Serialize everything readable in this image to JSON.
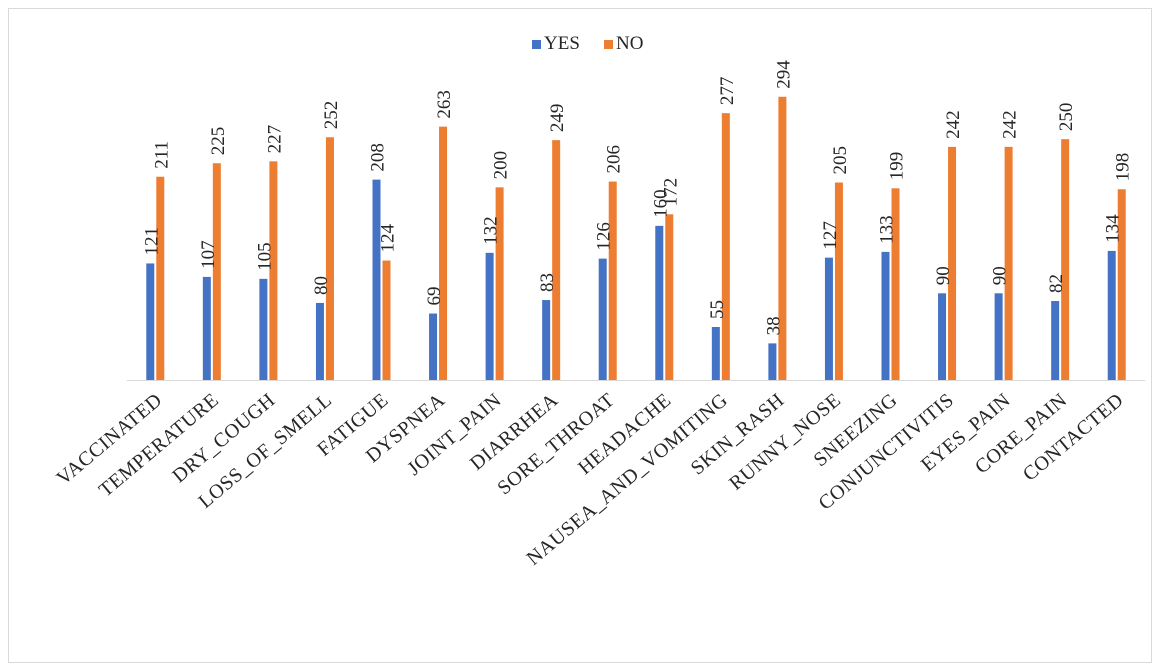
{
  "chart_data": {
    "type": "bar",
    "categories": [
      "VACCINATED",
      "TEMPERATURE",
      "DRY_COUGH",
      "LOSS_OF_SMELL",
      "FATIGUE",
      "DYSPNEA",
      "JOINT_PAIN",
      "DIARRHEA",
      "SORE_THROAT",
      "HEADACHE",
      "NAUSEA_AND_VOMITING",
      "SKIN_RASH",
      "RUNNY_NOSE",
      "SNEEZING",
      "CONJUNCTIVITIS",
      "EYES_PAIN",
      "CORE_PAIN",
      "CONTACTED"
    ],
    "series": [
      {
        "name": "YES",
        "color": "#4472c4",
        "values": [
          121,
          107,
          105,
          80,
          208,
          69,
          132,
          83,
          126,
          160,
          55,
          38,
          127,
          133,
          90,
          90,
          82,
          134
        ]
      },
      {
        "name": "NO",
        "color": "#ed7d31",
        "values": [
          211,
          225,
          227,
          252,
          124,
          263,
          200,
          249,
          206,
          172,
          277,
          294,
          205,
          199,
          242,
          242,
          250,
          198
        ]
      }
    ],
    "title": "",
    "xlabel": "",
    "ylabel": "",
    "ylim": [
      0,
      300
    ],
    "grid": false,
    "data_labels": true,
    "legend_position": "top"
  }
}
